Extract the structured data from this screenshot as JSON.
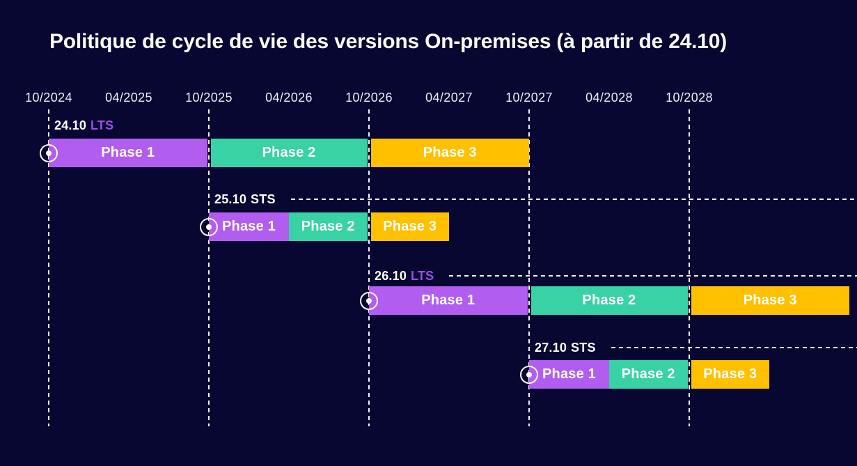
{
  "title": "Politique de cycle de vie des versions On-premises (à partir de 24.10)",
  "colors": {
    "background": "#070731",
    "phase1": "#B15DF0",
    "phase2": "#38D2A4",
    "phase3": "#FFC000",
    "lts_badge": "#9D4DE8",
    "sts_badge": "#FFFFFF",
    "axis_text": "#ECEFF4",
    "title_text": "#FAFBFF",
    "grid": "#FFFFFF"
  },
  "chart_data": {
    "type": "gantt",
    "title": "Politique de cycle de vie des versions On-premises (à partir de 24.10)",
    "x_axis": {
      "tick_labels": [
        "10/2024",
        "04/2025",
        "10/2025",
        "04/2026",
        "10/2026",
        "04/2027",
        "10/2027",
        "04/2028",
        "10/2028"
      ],
      "gridline_ticks": [
        "10/2024",
        "10/2025",
        "10/2026",
        "10/2027",
        "10/2028"
      ]
    },
    "phase_color_keys": {
      "Phase 1": "phase1",
      "Phase 2": "phase2",
      "Phase 3": "phase3"
    },
    "series": [
      {
        "name": "24.10",
        "badge": "LTS",
        "trailing_dashed_line": false,
        "phases": [
          {
            "label": "Phase 1",
            "start": "10/2024",
            "end": "10/2025"
          },
          {
            "label": "Phase 2",
            "start": "10/2025",
            "end": "10/2026"
          },
          {
            "label": "Phase 3",
            "start": "10/2026",
            "end": "10/2027"
          }
        ]
      },
      {
        "name": "25.10",
        "badge": "STS",
        "trailing_dashed_line": true,
        "phases": [
          {
            "label": "Phase 1",
            "start": "10/2025",
            "end": "04/2026"
          },
          {
            "label": "Phase 2",
            "start": "04/2026",
            "end": "10/2026"
          },
          {
            "label": "Phase 3",
            "start": "10/2026",
            "end": "04/2027"
          }
        ]
      },
      {
        "name": "26.10",
        "badge": "LTS",
        "trailing_dashed_line": true,
        "phases": [
          {
            "label": "Phase 1",
            "start": "10/2026",
            "end": "10/2027"
          },
          {
            "label": "Phase 2",
            "start": "10/2027",
            "end": "10/2028"
          },
          {
            "label": "Phase 3",
            "start": "10/2028",
            "end": "10/2029"
          }
        ]
      },
      {
        "name": "27.10",
        "badge": "STS",
        "trailing_dashed_line": true,
        "phases": [
          {
            "label": "Phase 1",
            "start": "10/2027",
            "end": "04/2028"
          },
          {
            "label": "Phase 2",
            "start": "04/2028",
            "end": "10/2028"
          },
          {
            "label": "Phase 3",
            "start": "10/2028",
            "end": "04/2029"
          }
        ]
      }
    ]
  }
}
